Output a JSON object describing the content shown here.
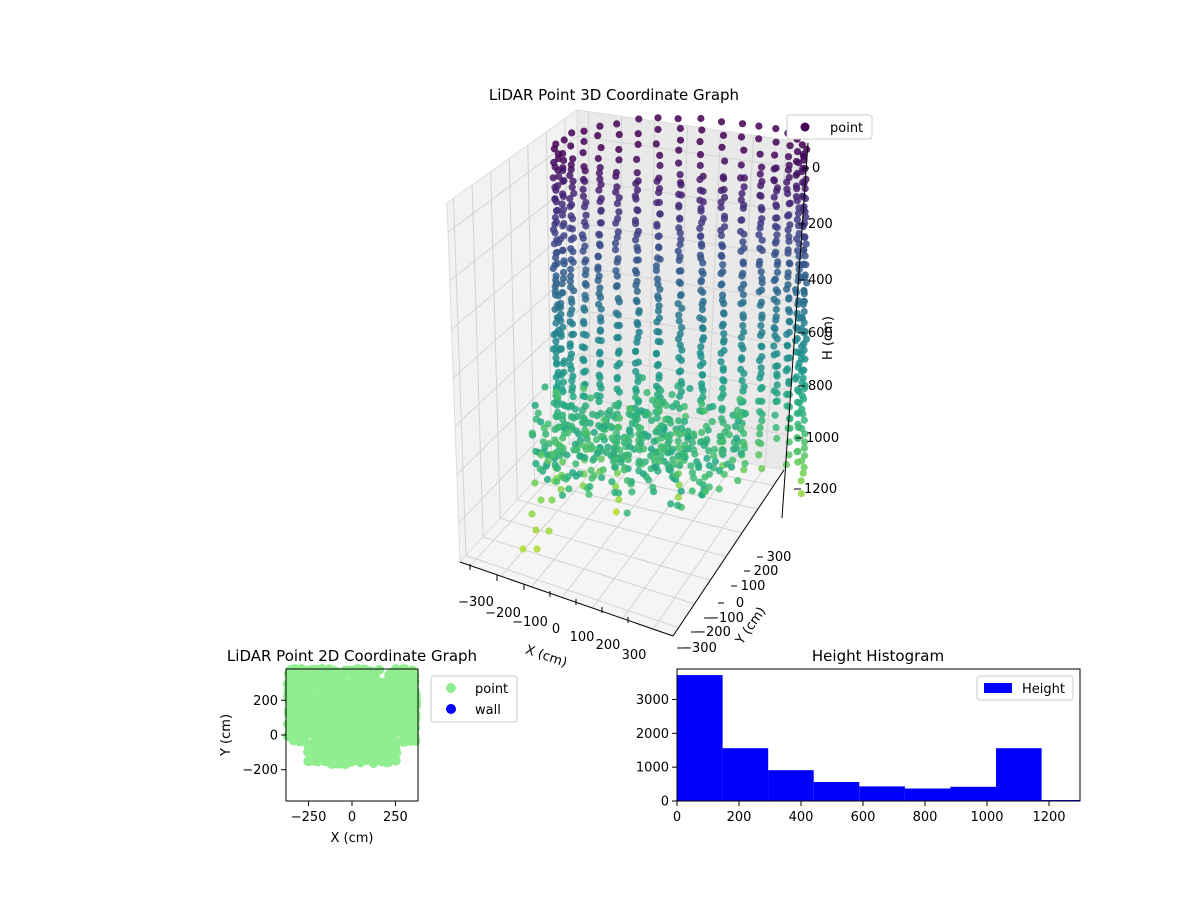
{
  "chart_data": [
    {
      "type": "scatter",
      "title": "LiDAR Point 3D Coordinate Graph",
      "xlabel": "X (cm)",
      "ylabel": "Y (cm)",
      "zlabel": "H (cm)",
      "x_ticks": [
        "−300",
        "−200",
        "−100",
        "0",
        "100",
        "200",
        "300"
      ],
      "y_ticks": [
        "−300",
        "−200",
        "−100",
        "0",
        "100",
        "200",
        "300"
      ],
      "z_ticks": [
        "0",
        "200",
        "400",
        "600",
        "800",
        "1000",
        "1200"
      ],
      "z_inverted": true,
      "legend": [
        {
          "label": "point",
          "color": "#440154"
        }
      ],
      "legend_position": "top-right",
      "grid": true,
      "colormap": "viridis"
    },
    {
      "type": "scatter",
      "title": "LiDAR Point 2D Coordinate Graph",
      "xlabel": "X (cm)",
      "ylabel": "Y (cm)",
      "xlim": [
        -380,
        380
      ],
      "ylim": [
        -380,
        380
      ],
      "x_ticks": [
        "−250",
        "0",
        "250"
      ],
      "y_ticks": [
        "−200",
        "0",
        "200"
      ],
      "legend": [
        {
          "label": "point",
          "color": "#90ee90"
        },
        {
          "label": "wall",
          "color": "#0000ff"
        }
      ],
      "legend_position": "outside-right"
    },
    {
      "type": "bar",
      "title": "Height Histogram",
      "xlabel": "",
      "ylabel": "",
      "bin_edges": [
        0,
        147,
        294,
        441,
        588,
        735,
        882,
        1029,
        1176,
        1323
      ],
      "values": [
        3720,
        1560,
        910,
        560,
        430,
        370,
        420,
        1560,
        30
      ],
      "xlim": [
        0,
        1300
      ],
      "ylim": [
        0,
        3900
      ],
      "x_ticks": [
        "0",
        "200",
        "400",
        "600",
        "800",
        "1000",
        "1200"
      ],
      "y_ticks": [
        "0",
        "1000",
        "2000",
        "3000"
      ],
      "legend": [
        {
          "label": "Height",
          "color": "#0000ff"
        }
      ],
      "legend_position": "top-right",
      "color": "#0000ff"
    }
  ]
}
